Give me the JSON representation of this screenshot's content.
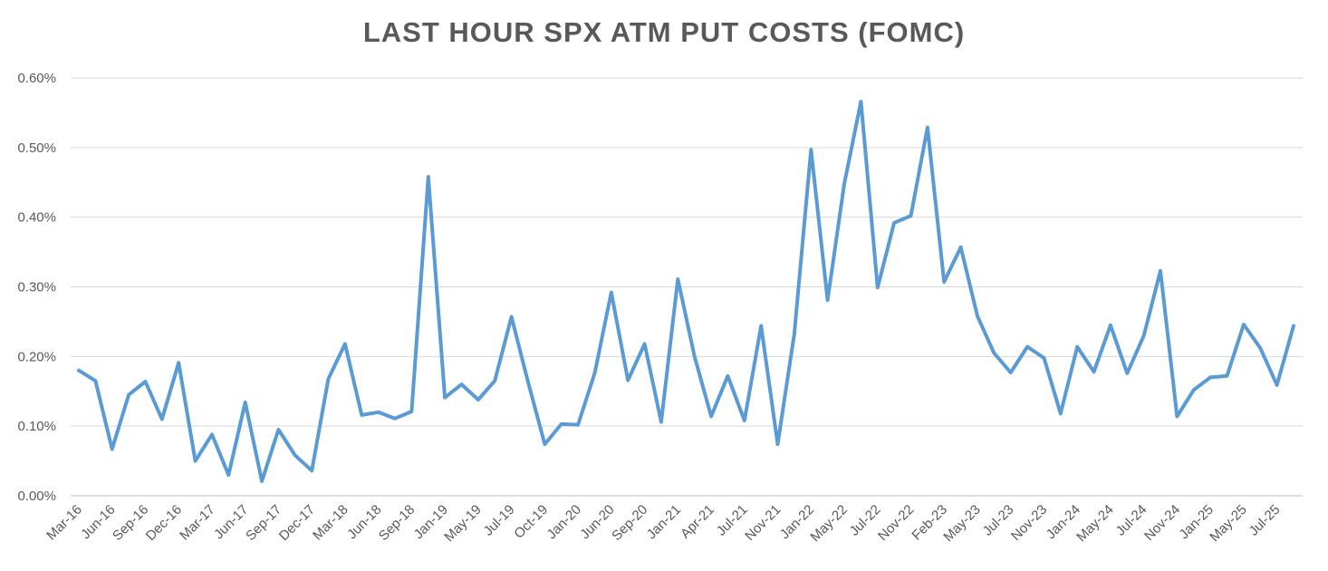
{
  "chart_data": {
    "type": "line",
    "title": "LAST HOUR SPX ATM PUT COSTS (FOMC)",
    "xlabel": "",
    "ylabel": "",
    "ylim": [
      0,
      0.6
    ],
    "y_ticks": [
      0,
      0.1,
      0.2,
      0.3,
      0.4,
      0.5,
      0.6
    ],
    "y_tick_labels": [
      "0.00%",
      "0.10%",
      "0.20%",
      "0.30%",
      "0.40%",
      "0.50%",
      "0.60%"
    ],
    "grid": true,
    "legend": "none",
    "x_tick_labels": [
      {
        "index": 0,
        "label": "Mar-16"
      },
      {
        "index": 2,
        "label": "Jun-16"
      },
      {
        "index": 4,
        "label": "Sep-16"
      },
      {
        "index": 6,
        "label": "Dec-16"
      },
      {
        "index": 8,
        "label": "Mar-17"
      },
      {
        "index": 10,
        "label": "Jun-17"
      },
      {
        "index": 12,
        "label": "Sep-17"
      },
      {
        "index": 14,
        "label": "Dec-17"
      },
      {
        "index": 16,
        "label": "Mar-18"
      },
      {
        "index": 18,
        "label": "Jun-18"
      },
      {
        "index": 20,
        "label": "Sep-18"
      },
      {
        "index": 22,
        "label": "Jan-19"
      },
      {
        "index": 24,
        "label": "May-19"
      },
      {
        "index": 26,
        "label": "Jul-19"
      },
      {
        "index": 28,
        "label": "Oct-19"
      },
      {
        "index": 30,
        "label": "Jan-20"
      },
      {
        "index": 32,
        "label": "Jun-20"
      },
      {
        "index": 34,
        "label": "Sep-20"
      },
      {
        "index": 36,
        "label": "Jan-21"
      },
      {
        "index": 38,
        "label": "Apr-21"
      },
      {
        "index": 40,
        "label": "Jul-21"
      },
      {
        "index": 42,
        "label": "Nov-21"
      },
      {
        "index": 44,
        "label": "Jan-22"
      },
      {
        "index": 46,
        "label": "May-22"
      },
      {
        "index": 48,
        "label": "Jul-22"
      },
      {
        "index": 50,
        "label": "Nov-22"
      },
      {
        "index": 52,
        "label": "Feb-23"
      },
      {
        "index": 54,
        "label": "May-23"
      },
      {
        "index": 56,
        "label": "Jul-23"
      },
      {
        "index": 58,
        "label": "Nov-23"
      },
      {
        "index": 60,
        "label": "Jan-24"
      },
      {
        "index": 62,
        "label": "May-24"
      },
      {
        "index": 64,
        "label": "Jul-24"
      },
      {
        "index": 66,
        "label": "Nov-24"
      },
      {
        "index": 68,
        "label": "Jan-25"
      },
      {
        "index": 70,
        "label": "May-25"
      },
      {
        "index": 72,
        "label": "Jul-25"
      }
    ],
    "series": [
      {
        "color": "#5B9BD5",
        "values": [
          0.18,
          0.165,
          0.067,
          0.145,
          0.164,
          0.11,
          0.191,
          0.05,
          0.088,
          0.03,
          0.134,
          0.021,
          0.095,
          0.058,
          0.036,
          0.168,
          0.218,
          0.116,
          0.12,
          0.111,
          0.121,
          0.458,
          0.141,
          0.16,
          0.138,
          0.165,
          0.257,
          0.163,
          0.074,
          0.103,
          0.102,
          0.176,
          0.292,
          0.166,
          0.218,
          0.106,
          0.311,
          0.2,
          0.114,
          0.172,
          0.108,
          0.244,
          0.074,
          0.233,
          0.497,
          0.281,
          0.448,
          0.566,
          0.299,
          0.392,
          0.402,
          0.529,
          0.307,
          0.357,
          0.258,
          0.205,
          0.177,
          0.214,
          0.198,
          0.118,
          0.214,
          0.178,
          0.245,
          0.176,
          0.23,
          0.323,
          0.114,
          0.152,
          0.17,
          0.172,
          0.246,
          0.212,
          0.159,
          0.244
        ]
      }
    ]
  }
}
